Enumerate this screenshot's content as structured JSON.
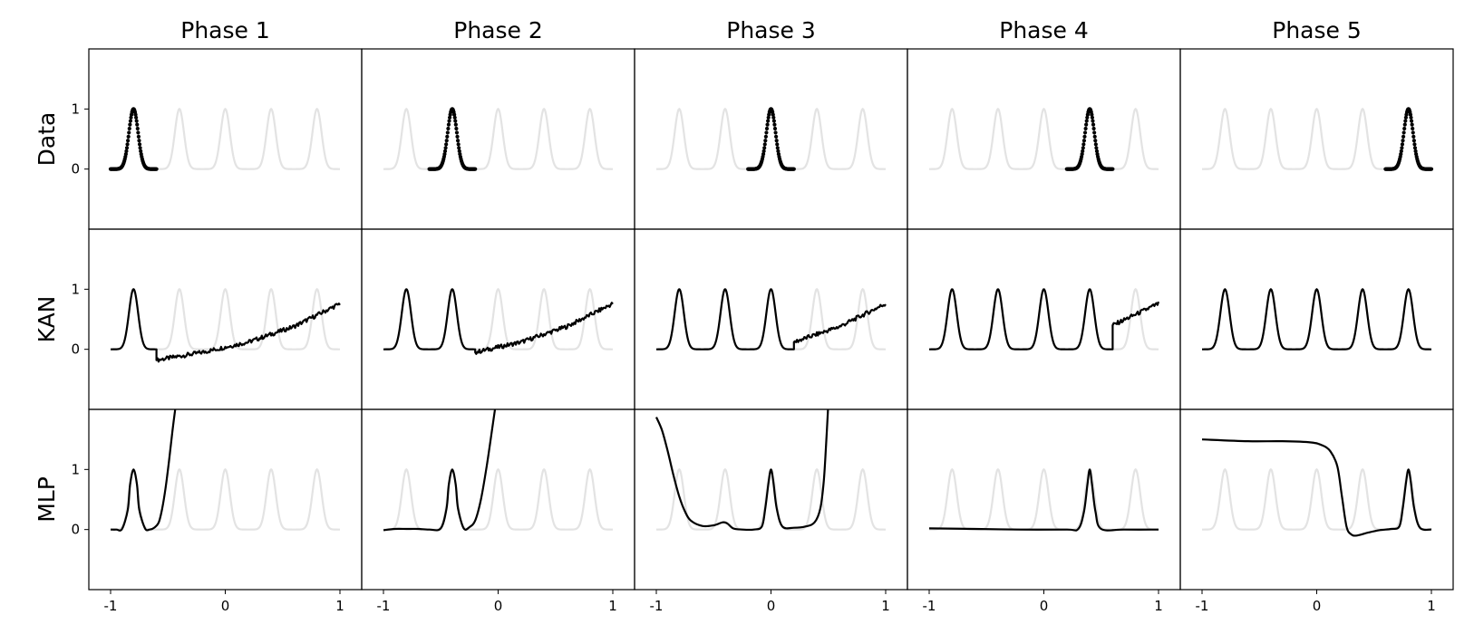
{
  "columns": [
    "Phase 1",
    "Phase 2",
    "Phase 3",
    "Phase 4",
    "Phase 5"
  ],
  "rows": [
    "Data",
    "KAN",
    "MLP"
  ],
  "chart_data": {
    "type": "line",
    "layout": "grid 3 rows x 5 columns",
    "xlim": [
      -1,
      1
    ],
    "ylim": [
      -1,
      2
    ],
    "x_ticks": [
      -1,
      0,
      1
    ],
    "x_tick_labels": [
      "-1",
      "0",
      "1"
    ],
    "y_ticks": [
      0,
      1
    ],
    "y_tick_labels": [
      "0",
      "1"
    ],
    "grid": false,
    "background_curve": {
      "description": "five gaussian peaks",
      "color": "#e3e3e3",
      "peak_centers": [
        -0.8,
        -0.4,
        0,
        0.4,
        0.8
      ],
      "peak_height": 1
    },
    "foreground_color": "#000000",
    "panels": [
      {
        "row": "Data",
        "column": "Phase 1",
        "style": "dots",
        "peaks": [
          -0.8
        ],
        "x_range": [
          -1,
          -0.6
        ]
      },
      {
        "row": "Data",
        "column": "Phase 2",
        "style": "dots",
        "peaks": [
          -0.4
        ],
        "x_range": [
          -0.6,
          -0.2
        ]
      },
      {
        "row": "Data",
        "column": "Phase 3",
        "style": "dots",
        "peaks": [
          0
        ],
        "x_range": [
          -0.2,
          0.2
        ]
      },
      {
        "row": "Data",
        "column": "Phase 4",
        "style": "dots",
        "peaks": [
          0.4
        ],
        "x_range": [
          0.2,
          0.6
        ]
      },
      {
        "row": "Data",
        "column": "Phase 5",
        "style": "dots",
        "peaks": [
          0.8
        ],
        "x_range": [
          0.6,
          1
        ]
      },
      {
        "row": "KAN",
        "column": "Phase 1",
        "style": "line",
        "peaks": [
          -0.8
        ],
        "fitted_until": -0.6,
        "tail": [
          [
            -0.6,
            -0.18
          ],
          [
            -0.2,
            -0.05
          ],
          [
            0.2,
            0.12
          ],
          [
            0.6,
            0.38
          ],
          [
            1.0,
            0.76
          ]
        ]
      },
      {
        "row": "KAN",
        "column": "Phase 2",
        "style": "line",
        "peaks": [
          -0.8,
          -0.4
        ],
        "fitted_until": -0.2,
        "tail": [
          [
            -0.2,
            -0.05
          ],
          [
            0.2,
            0.12
          ],
          [
            0.6,
            0.38
          ],
          [
            1.0,
            0.76
          ]
        ]
      },
      {
        "row": "KAN",
        "column": "Phase 3",
        "style": "line",
        "peaks": [
          -0.8,
          -0.4,
          0
        ],
        "fitted_until": 0.2,
        "tail": [
          [
            0.2,
            0.12
          ],
          [
            0.6,
            0.38
          ],
          [
            1.0,
            0.76
          ]
        ]
      },
      {
        "row": "KAN",
        "column": "Phase 4",
        "style": "line",
        "peaks": [
          -0.8,
          -0.4,
          0,
          0.4
        ],
        "fitted_until": 0.6,
        "tail": [
          [
            0.6,
            0.4
          ],
          [
            1.0,
            0.76
          ]
        ]
      },
      {
        "row": "KAN",
        "column": "Phase 5",
        "style": "line",
        "peaks": [
          -0.8,
          -0.4,
          0,
          0.4,
          0.8
        ],
        "fitted_until": 1.0,
        "tail": []
      },
      {
        "row": "MLP",
        "column": "Phase 1",
        "style": "line",
        "points": [
          [
            -1,
            0
          ],
          [
            -0.95,
            0
          ],
          [
            -0.9,
            0.01
          ],
          [
            -0.85,
            0.33
          ],
          [
            -0.83,
            0.75
          ],
          [
            -0.8,
            1
          ],
          [
            -0.77,
            0.75
          ],
          [
            -0.75,
            0.33
          ],
          [
            -0.7,
            0.02
          ],
          [
            -0.66,
            0
          ],
          [
            -0.62,
            0.03
          ],
          [
            -0.58,
            0.12
          ],
          [
            -0.55,
            0.35
          ],
          [
            -0.52,
            0.7
          ],
          [
            -0.49,
            1.15
          ],
          [
            -0.46,
            1.65
          ],
          [
            -0.43,
            2.1
          ]
        ]
      },
      {
        "row": "MLP",
        "column": "Phase 2",
        "style": "line",
        "points": [
          [
            -1,
            -0.01
          ],
          [
            -0.9,
            0.01
          ],
          [
            -0.8,
            0.01
          ],
          [
            -0.7,
            0.01
          ],
          [
            -0.6,
            0
          ],
          [
            -0.5,
            0.02
          ],
          [
            -0.45,
            0.35
          ],
          [
            -0.43,
            0.75
          ],
          [
            -0.4,
            1
          ],
          [
            -0.37,
            0.75
          ],
          [
            -0.35,
            0.35
          ],
          [
            -0.3,
            0.02
          ],
          [
            -0.25,
            0.04
          ],
          [
            -0.2,
            0.15
          ],
          [
            -0.15,
            0.5
          ],
          [
            -0.1,
            1.05
          ],
          [
            -0.05,
            1.7
          ],
          [
            -0.02,
            2.1
          ]
        ]
      },
      {
        "row": "MLP",
        "column": "Phase 3",
        "style": "line",
        "points": [
          [
            -1,
            1.87
          ],
          [
            -0.95,
            1.65
          ],
          [
            -0.9,
            1.3
          ],
          [
            -0.85,
            0.9
          ],
          [
            -0.8,
            0.55
          ],
          [
            -0.75,
            0.3
          ],
          [
            -0.7,
            0.15
          ],
          [
            -0.6,
            0.06
          ],
          [
            -0.5,
            0.07
          ],
          [
            -0.42,
            0.12
          ],
          [
            -0.38,
            0.1
          ],
          [
            -0.33,
            0.02
          ],
          [
            -0.25,
            0
          ],
          [
            -0.15,
            0
          ],
          [
            -0.08,
            0.05
          ],
          [
            -0.05,
            0.35
          ],
          [
            -0.02,
            0.8
          ],
          [
            0,
            1
          ],
          [
            0.02,
            0.8
          ],
          [
            0.05,
            0.35
          ],
          [
            0.1,
            0.05
          ],
          [
            0.2,
            0.03
          ],
          [
            0.3,
            0.05
          ],
          [
            0.38,
            0.12
          ],
          [
            0.43,
            0.35
          ],
          [
            0.46,
            0.8
          ],
          [
            0.48,
            1.4
          ],
          [
            0.5,
            2.1
          ]
        ]
      },
      {
        "row": "MLP",
        "column": "Phase 4",
        "style": "line",
        "points": [
          [
            -1,
            0.02
          ],
          [
            -0.6,
            0.01
          ],
          [
            -0.2,
            0
          ],
          [
            0.2,
            0
          ],
          [
            0.3,
            0.01
          ],
          [
            0.35,
            0.3
          ],
          [
            0.38,
            0.75
          ],
          [
            0.4,
            1
          ],
          [
            0.42,
            0.75
          ],
          [
            0.45,
            0.3
          ],
          [
            0.5,
            0.01
          ],
          [
            0.7,
            0
          ],
          [
            1,
            0
          ]
        ]
      },
      {
        "row": "MLP",
        "column": "Phase 5",
        "style": "line",
        "points": [
          [
            -1,
            1.5
          ],
          [
            -0.6,
            1.47
          ],
          [
            -0.3,
            1.47
          ],
          [
            -0.05,
            1.45
          ],
          [
            0.05,
            1.4
          ],
          [
            0.12,
            1.3
          ],
          [
            0.18,
            1.05
          ],
          [
            0.22,
            0.55
          ],
          [
            0.26,
            0.05
          ],
          [
            0.3,
            -0.08
          ],
          [
            0.35,
            -0.1
          ],
          [
            0.45,
            -0.05
          ],
          [
            0.55,
            -0.01
          ],
          [
            0.65,
            0.01
          ],
          [
            0.72,
            0.05
          ],
          [
            0.75,
            0.35
          ],
          [
            0.78,
            0.8
          ],
          [
            0.8,
            1
          ],
          [
            0.82,
            0.8
          ],
          [
            0.85,
            0.35
          ],
          [
            0.9,
            0.03
          ],
          [
            1,
            0
          ]
        ]
      }
    ]
  }
}
